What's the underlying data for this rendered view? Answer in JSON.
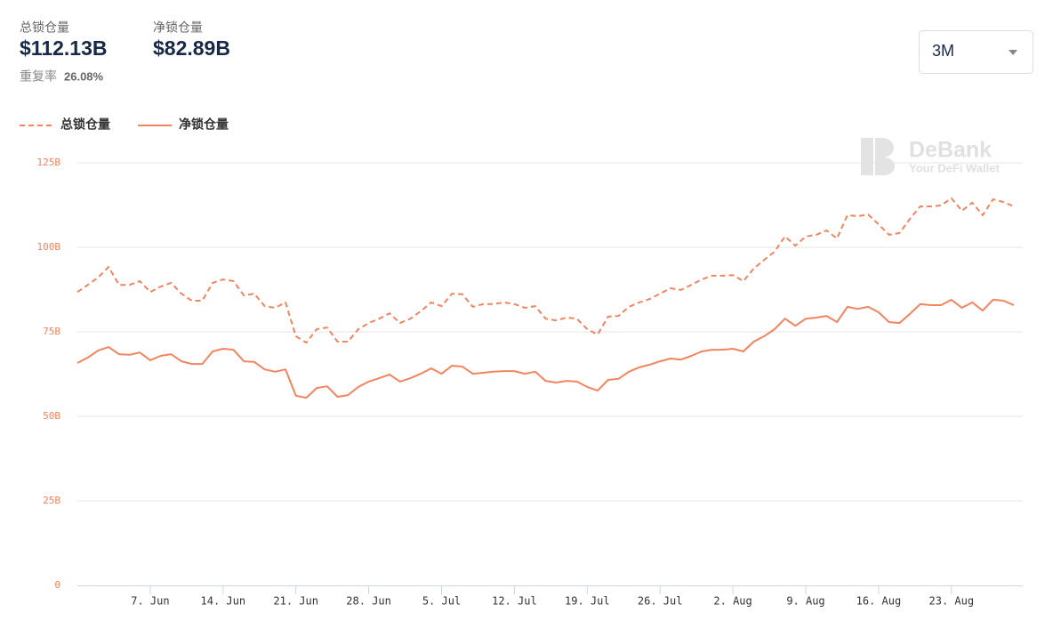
{
  "summary": {
    "total_label": "总锁仓量",
    "total_value": "$112.13B",
    "net_label": "净锁仓量",
    "net_value": "$82.89B",
    "overlap_label": "重复率",
    "overlap_value": "26.08%"
  },
  "dropdown": "3M",
  "watermark": {
    "brand": "DeBank",
    "tagline": "Your DeFi Wallet"
  },
  "chart_data": {
    "type": "line",
    "x": [
      "31. May",
      "1. Jun",
      "2. Jun",
      "3. Jun",
      "4. Jun",
      "5. Jun",
      "6. Jun",
      "7. Jun",
      "8. Jun",
      "9. Jun",
      "10. Jun",
      "11. Jun",
      "12. Jun",
      "13. Jun",
      "14. Jun",
      "15. Jun",
      "16. Jun",
      "17. Jun",
      "18. Jun",
      "19. Jun",
      "20. Jun",
      "21. Jun",
      "22. Jun",
      "23. Jun",
      "24. Jun",
      "25. Jun",
      "26. Jun",
      "27. Jun",
      "28. Jun",
      "29. Jun",
      "30. Jun",
      "1. Jul",
      "2. Jul",
      "3. Jul",
      "4. Jul",
      "5. Jul",
      "6. Jul",
      "7. Jul",
      "8. Jul",
      "9. Jul",
      "10. Jul",
      "11. Jul",
      "12. Jul",
      "13. Jul",
      "14. Jul",
      "15. Jul",
      "16. Jul",
      "17. Jul",
      "18. Jul",
      "19. Jul",
      "20. Jul",
      "21. Jul",
      "22. Jul",
      "23. Jul",
      "24. Jul",
      "25. Jul",
      "26. Jul",
      "27. Jul",
      "28. Jul",
      "29. Jul",
      "30. Jul",
      "31. Jul",
      "1. Aug",
      "2. Aug",
      "3. Aug",
      "4. Aug",
      "5. Aug",
      "6. Aug",
      "7. Aug",
      "8. Aug",
      "9. Aug",
      "10. Aug",
      "11. Aug",
      "12. Aug",
      "13. Aug",
      "14. Aug",
      "15. Aug",
      "16. Aug",
      "17. Aug",
      "18. Aug",
      "19. Aug",
      "20. Aug",
      "21. Aug",
      "22. Aug",
      "23. Aug",
      "24. Aug",
      "25. Aug",
      "26. Aug",
      "27. Aug",
      "28. Aug",
      "29. Aug"
    ],
    "series": [
      {
        "name": "总锁仓量",
        "color": "#f2845f",
        "dash": true,
        "values": [
          86.8,
          88.9,
          91.1,
          94.2,
          88.9,
          88.9,
          90.0,
          86.8,
          88.4,
          89.5,
          86.3,
          84.2,
          84.2,
          89.5,
          90.5,
          90.0,
          85.8,
          86.3,
          82.6,
          82.1,
          83.7,
          73.7,
          71.8,
          75.8,
          76.3,
          72.1,
          72.1,
          75.8,
          77.6,
          78.9,
          80.5,
          77.6,
          78.9,
          81.1,
          83.7,
          82.6,
          86.3,
          86.1,
          82.4,
          83.2,
          83.2,
          83.7,
          83.2,
          82.1,
          82.6,
          78.9,
          78.4,
          79.2,
          78.9,
          75.8,
          74.2,
          79.5,
          79.7,
          82.4,
          83.7,
          84.7,
          86.3,
          87.9,
          87.4,
          88.9,
          90.5,
          91.6,
          91.6,
          91.8,
          90.0,
          93.7,
          96.3,
          98.7,
          103.2,
          100.5,
          103.2,
          103.7,
          105.0,
          102.6,
          109.5,
          109.2,
          109.7,
          106.8,
          103.7,
          104.2,
          108.4,
          112.1,
          112.1,
          112.4,
          114.5,
          110.8,
          113.2,
          109.5,
          114.2,
          113.4,
          112.1
        ]
      },
      {
        "name": "净锁仓量",
        "color": "#f2845f",
        "dash": false,
        "values": [
          65.8,
          67.4,
          69.5,
          70.5,
          68.4,
          68.2,
          68.9,
          66.6,
          67.9,
          68.4,
          66.3,
          65.5,
          65.5,
          69.2,
          70.0,
          69.7,
          66.3,
          66.1,
          63.9,
          63.2,
          63.9,
          56.1,
          55.5,
          58.4,
          58.9,
          55.8,
          56.3,
          58.7,
          60.3,
          61.3,
          62.4,
          60.3,
          61.3,
          62.6,
          64.2,
          62.6,
          65.0,
          64.7,
          62.6,
          62.9,
          63.2,
          63.4,
          63.4,
          62.6,
          63.2,
          60.5,
          60.0,
          60.5,
          60.3,
          58.7,
          57.6,
          60.8,
          61.1,
          63.2,
          64.5,
          65.3,
          66.3,
          67.1,
          66.8,
          67.9,
          69.2,
          69.7,
          69.7,
          70.0,
          69.2,
          72.1,
          73.7,
          75.8,
          78.9,
          76.8,
          78.9,
          79.2,
          79.7,
          77.9,
          82.4,
          81.8,
          82.4,
          80.8,
          77.9,
          77.6,
          80.3,
          83.2,
          82.9,
          82.9,
          84.5,
          82.1,
          83.7,
          81.3,
          84.5,
          84.2,
          82.9
        ]
      }
    ],
    "ylim": [
      0,
      125
    ],
    "yticks": [
      0,
      {
        "value": 25,
        "label": "25B"
      },
      {
        "value": 50,
        "label": "50B"
      },
      {
        "value": 75,
        "label": "75B"
      },
      {
        "value": 100,
        "label": "100B"
      },
      {
        "value": 125,
        "label": "125B"
      }
    ],
    "xticks": [
      "7. Jun",
      "14. Jun",
      "21. Jun",
      "28. Jun",
      "5. Jul",
      "12. Jul",
      "19. Jul",
      "26. Jul",
      "2. Aug",
      "9. Aug",
      "16. Aug",
      "23. Aug"
    ],
    "grid": true,
    "legend": "top-left"
  }
}
